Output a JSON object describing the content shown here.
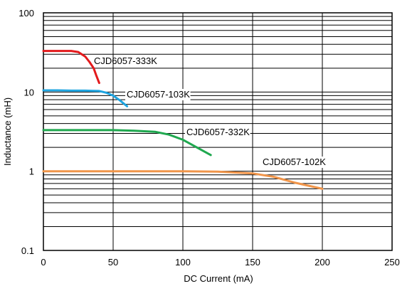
{
  "chart_data": {
    "type": "line",
    "title": "",
    "xlabel": "DC Current (mA)",
    "ylabel": "Inductance (mH)",
    "xlim": [
      0,
      250
    ],
    "ylim": [
      0.1,
      100
    ],
    "yscale": "log",
    "grid": true,
    "x_ticks": [
      0,
      50,
      100,
      150,
      200,
      250
    ],
    "y_ticks": [
      0.1,
      1,
      10,
      100
    ],
    "series": [
      {
        "name": "CJD6057-333K",
        "color": "#e31a1c",
        "x": [
          0,
          10,
          20,
          25,
          30,
          33,
          36,
          38,
          40
        ],
        "y": [
          33,
          33,
          33,
          32,
          28,
          24,
          20,
          16,
          13
        ]
      },
      {
        "name": "CJD6057-103K",
        "color": "#1ea4e0",
        "x": [
          0,
          10,
          20,
          30,
          40,
          45,
          50,
          55,
          60
        ],
        "y": [
          10.5,
          10.5,
          10.4,
          10.4,
          10.3,
          9.8,
          9,
          7.8,
          6.6
        ]
      },
      {
        "name": "CJD6057-332K",
        "color": "#1fa84f",
        "x": [
          0,
          25,
          50,
          65,
          80,
          90,
          100,
          110,
          120
        ],
        "y": [
          3.3,
          3.3,
          3.3,
          3.25,
          3.15,
          2.9,
          2.5,
          2.0,
          1.6
        ]
      },
      {
        "name": "CJD6057-102K",
        "color": "#f0954a",
        "x": [
          0,
          50,
          100,
          125,
          150,
          165,
          180,
          200
        ],
        "y": [
          1.0,
          1.0,
          1.0,
          0.99,
          0.94,
          0.85,
          0.72,
          0.6
        ]
      }
    ]
  }
}
